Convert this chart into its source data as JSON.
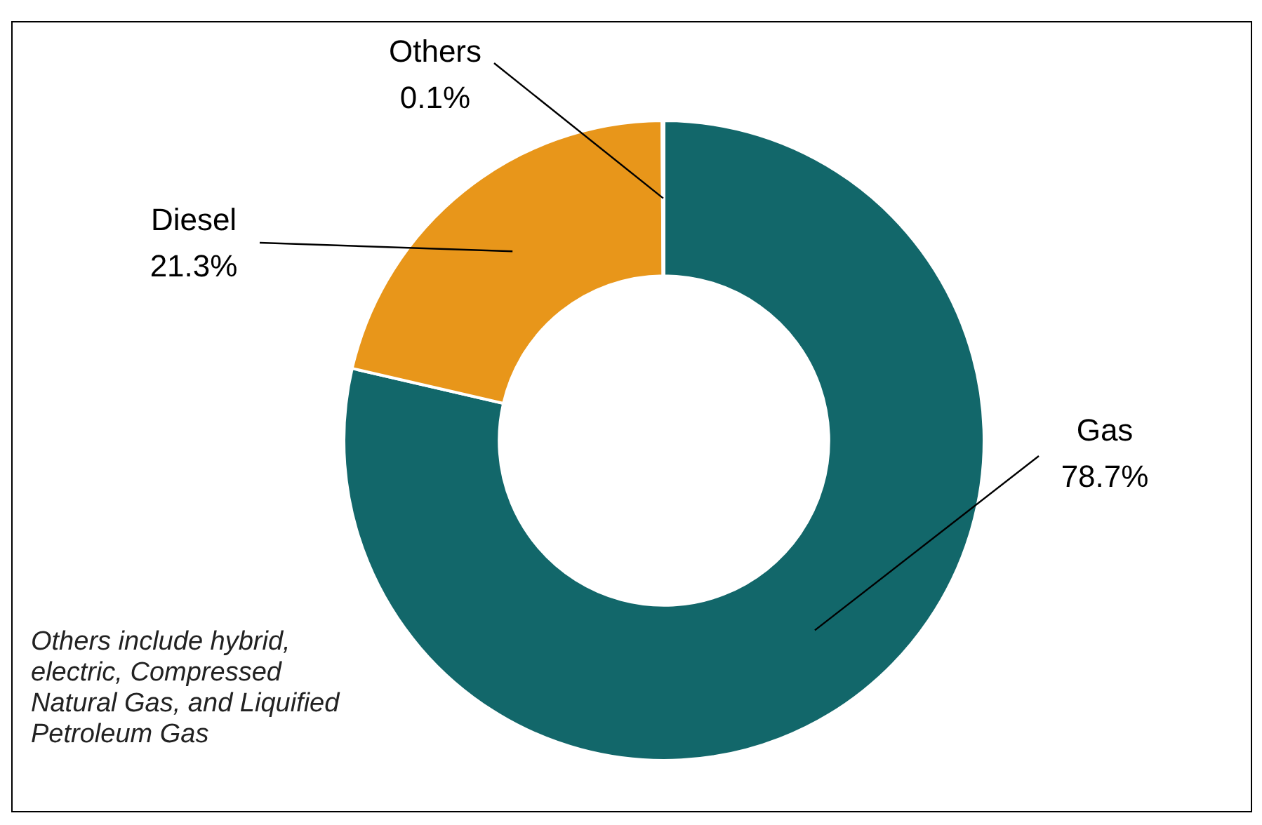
{
  "chart_data": {
    "type": "donut",
    "categories": [
      "Gas",
      "Diesel",
      "Others"
    ],
    "values": [
      78.7,
      21.3,
      0.1
    ],
    "colors": [
      "#12676a",
      "#e8961a",
      "#a5a5a5"
    ],
    "value_labels": [
      "78.7%",
      "21.3%",
      "0.1%"
    ],
    "legend": false,
    "annotations": [
      "Others include hybrid, electric, Compressed Natural Gas, and Liquified Petroleum Gas"
    ]
  }
}
